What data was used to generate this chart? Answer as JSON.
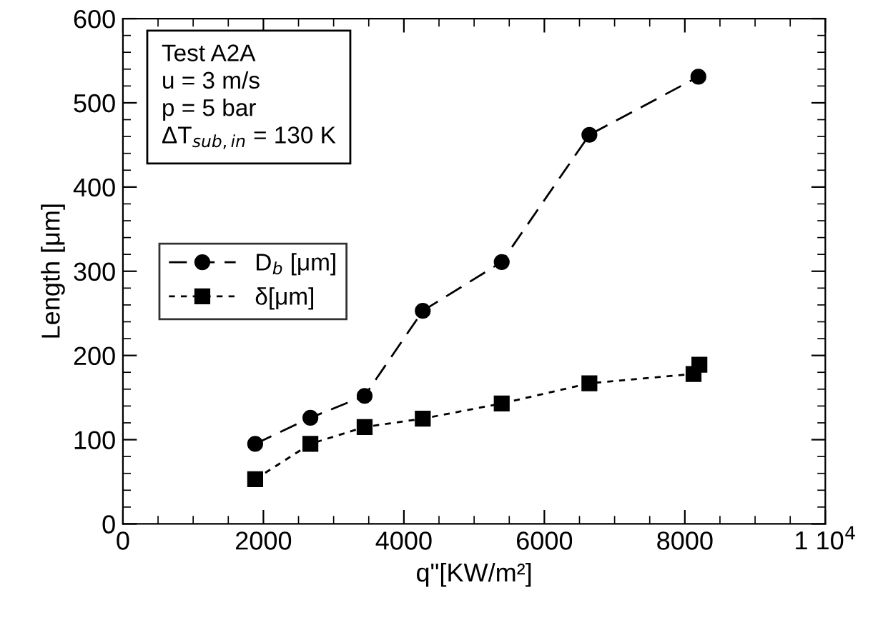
{
  "chart_data": {
    "type": "line",
    "xlabel": "q\"[KW/m²]",
    "ylabel": "Length [μm]",
    "xlim": [
      0,
      10000
    ],
    "xticks": [
      0,
      2000,
      4000,
      6000,
      8000,
      {
        "value": 10000,
        "label": "1 10$^{4}$"
      }
    ],
    "ylim": [
      0,
      600
    ],
    "yticks": [
      0,
      100,
      200,
      300,
      400,
      500,
      600
    ],
    "grid": false,
    "legend": "left",
    "annotations": [
      "Test A2A\nu = 3 m/s\np = 5 bar\nΔT$_{sub,in}$ = 130 K"
    ],
    "series": [
      {
        "name": "D$_{b}$ [μm]",
        "color": "#000000",
        "marker": "circle",
        "line_style": "dashed",
        "x": [
          1883,
          2669,
          3441,
          4269,
          5393,
          6641,
          8193
        ],
        "values": [
          95,
          126,
          152,
          253,
          311,
          462,
          531
        ]
      },
      {
        "name": "δ[μm]",
        "color": "#000000",
        "marker": "square",
        "line_style": "dotted",
        "x": [
          1883,
          2669,
          3441,
          4269,
          5393,
          6641,
          8124,
          8207
        ],
        "values": [
          53,
          95,
          115,
          125,
          143,
          167,
          178,
          189
        ]
      }
    ]
  }
}
